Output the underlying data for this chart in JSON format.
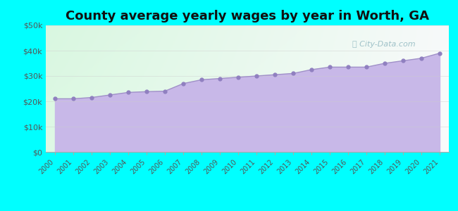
{
  "title": "County average yearly wages by year in Worth, GA",
  "years": [
    2000,
    2001,
    2002,
    2003,
    2004,
    2005,
    2006,
    2007,
    2008,
    2009,
    2010,
    2011,
    2012,
    2013,
    2014,
    2015,
    2016,
    2017,
    2018,
    2019,
    2020,
    2021
  ],
  "values": [
    21000,
    21000,
    21500,
    22500,
    23500,
    23800,
    24000,
    27000,
    28500,
    29000,
    29500,
    30000,
    30500,
    31000,
    32500,
    33500,
    33500,
    33500,
    35000,
    36000,
    37000,
    39000
  ],
  "ylim": [
    0,
    50000
  ],
  "yticks": [
    0,
    10000,
    20000,
    30000,
    40000,
    50000
  ],
  "ytick_labels": [
    "$0",
    "$10k",
    "$20k",
    "$30k",
    "$40k",
    "$50k"
  ],
  "background_color": "#00FFFF",
  "fill_color": "#c8b8e8",
  "line_color": "#a090c8",
  "marker_color": "#9080c0",
  "title_fontsize": 13,
  "watermark_text": "City-Data.com",
  "watermark_color": "#90b8c0"
}
